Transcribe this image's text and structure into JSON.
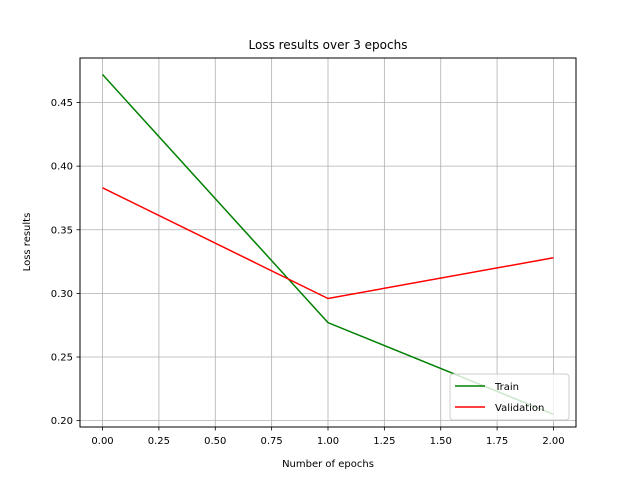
{
  "chart_data": {
    "type": "line",
    "title": "Loss results over 3 epochs",
    "xlabel": "Number of epochs",
    "ylabel": "Loss results",
    "xlim": [
      -0.1,
      2.1
    ],
    "ylim": [
      0.195,
      0.485
    ],
    "xticks": [
      "0.00",
      "0.25",
      "0.50",
      "0.75",
      "1.00",
      "1.25",
      "1.50",
      "1.75",
      "2.00"
    ],
    "yticks": [
      "0.20",
      "0.25",
      "0.30",
      "0.35",
      "0.40",
      "0.45"
    ],
    "x": [
      0,
      1,
      2
    ],
    "series": [
      {
        "name": "Train",
        "color": "#008000",
        "values": [
          0.472,
          0.277,
          0.205
        ]
      },
      {
        "name": "Validation",
        "color": "#ff0000",
        "values": [
          0.383,
          0.296,
          0.328
        ]
      }
    ],
    "grid": true,
    "legend_position": "lower-right"
  }
}
